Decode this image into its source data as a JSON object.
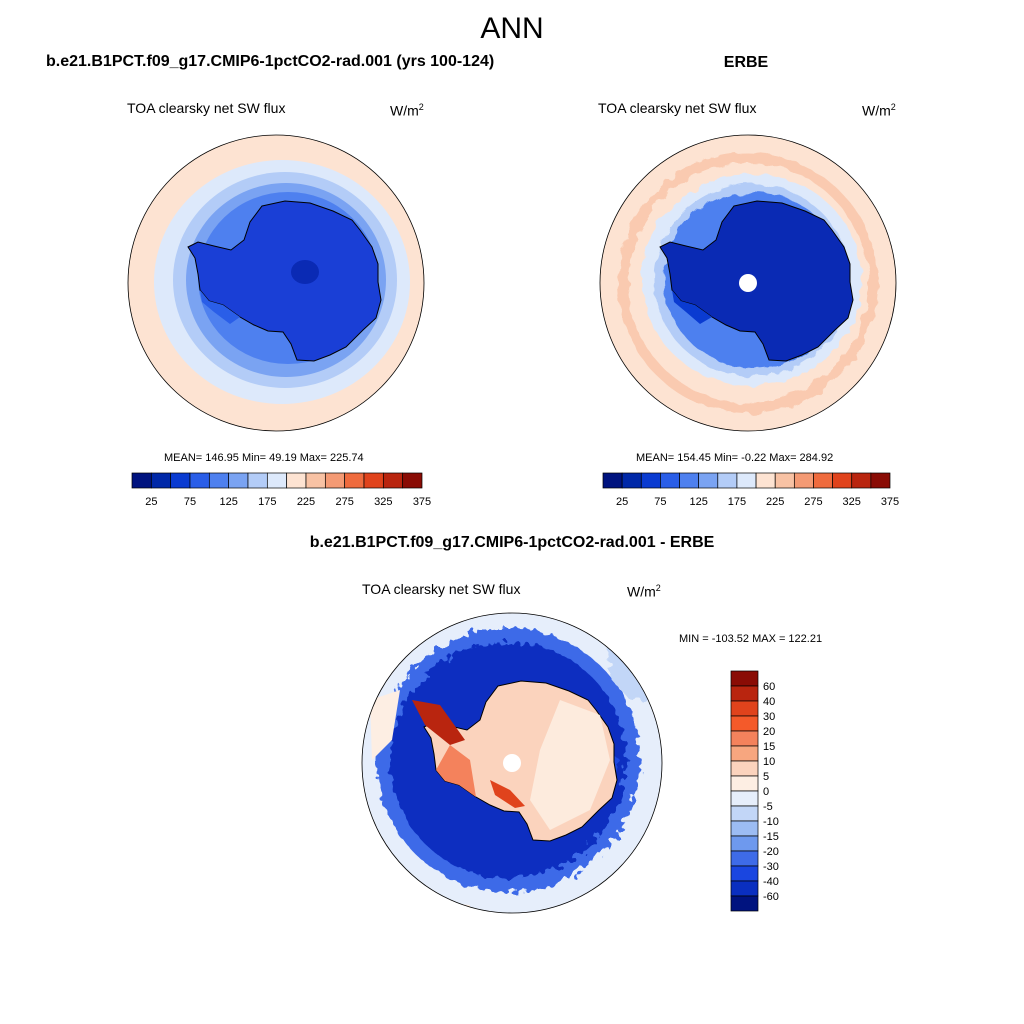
{
  "header": {
    "title": "ANN"
  },
  "panels": {
    "model": {
      "case_title": "b.e21.B1PCT.f09_g17.CMIP6-1pctCO2-rad.001 (yrs 100-124)",
      "variable": "TOA clearsky net SW flux",
      "units": "W/m",
      "units_exp": "2",
      "stats": "MEAN= 146.95  Min=  49.19  Max= 225.74"
    },
    "obs": {
      "case_title": "ERBE",
      "variable": "TOA clearsky net SW flux",
      "units": "W/m",
      "units_exp": "2",
      "stats": "MEAN= 154.45  Min=  -0.22  Max= 284.92"
    },
    "diff": {
      "case_title": "b.e21.B1PCT.f09_g17.CMIP6-1pctCO2-rad.001 - ERBE",
      "variable": "TOA clearsky net SW flux",
      "units": "W/m",
      "units_exp": "2",
      "minmax": "MIN = -103.52 MAX = 122.21"
    }
  },
  "colorbars": {
    "abs": {
      "colors": [
        "#00137f",
        "#0028a8",
        "#0a3bd1",
        "#2a5ee8",
        "#4e80ef",
        "#7aa3f2",
        "#b3ccf7",
        "#dde9fb",
        "#fde3d2",
        "#f8c2a4",
        "#f49a74",
        "#ef6b3e",
        "#e0431c",
        "#b9250f",
        "#8a0c05"
      ],
      "tick_labels": [
        "25",
        "75",
        "125",
        "175",
        "225",
        "275",
        "325",
        "375"
      ]
    },
    "diff": {
      "colors": [
        "#8a0c05",
        "#b9250f",
        "#e0431c",
        "#f45a2a",
        "#f4825c",
        "#f7a67f",
        "#fbd3bd",
        "#fdeee3",
        "#e6eefb",
        "#c2d6f7",
        "#9cbcf3",
        "#6e99ee",
        "#3e6be8",
        "#1a46e0",
        "#0a2fc0",
        "#00137f"
      ],
      "tick_labels": [
        "60",
        "40",
        "30",
        "20",
        "15",
        "10",
        "5",
        "0",
        "-5",
        "-10",
        "-15",
        "-20",
        "-30",
        "-40",
        "-60"
      ]
    }
  }
}
